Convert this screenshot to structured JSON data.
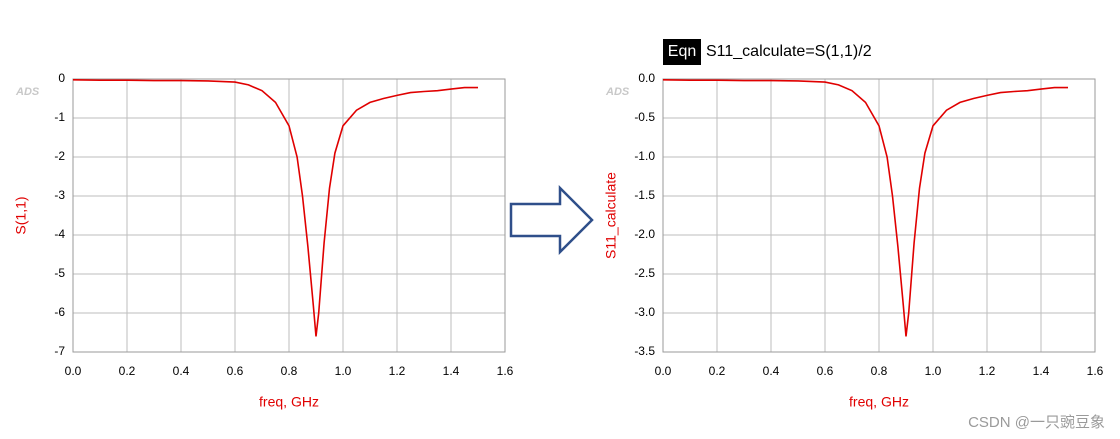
{
  "chart_data": [
    {
      "type": "line",
      "logo": "ADS",
      "x_label": "freq, GHz",
      "y_label": "S(1,1)",
      "color": "#e00000",
      "grid": true,
      "x": [
        0,
        0.1,
        0.2,
        0.3,
        0.4,
        0.5,
        0.6,
        0.65,
        0.7,
        0.75,
        0.8,
        0.83,
        0.85,
        0.87,
        0.89,
        0.9,
        0.91,
        0.93,
        0.95,
        0.97,
        1.0,
        1.05,
        1.1,
        1.15,
        1.2,
        1.25,
        1.3,
        1.35,
        1.4,
        1.45,
        1.5
      ],
      "values": [
        -0.02,
        -0.03,
        -0.03,
        -0.04,
        -0.04,
        -0.05,
        -0.08,
        -0.15,
        -0.3,
        -0.6,
        -1.2,
        -2.0,
        -3.0,
        -4.3,
        -5.8,
        -6.6,
        -6.0,
        -4.2,
        -2.8,
        -1.9,
        -1.2,
        -0.8,
        -0.6,
        -0.5,
        -0.42,
        -0.35,
        -0.32,
        -0.3,
        -0.26,
        -0.22,
        -0.22
      ],
      "xlim": [
        0,
        1.6
      ],
      "ylim": [
        -7,
        0
      ],
      "xticks": [
        {
          "value": 0,
          "label": "0.0"
        },
        0.2,
        0.4,
        0.6,
        0.8,
        {
          "value": 1,
          "label": "1.0"
        },
        1.2,
        1.4,
        1.6
      ],
      "yticks": [
        0,
        -1,
        -2,
        -3,
        -4,
        -5,
        -6,
        -7
      ]
    },
    {
      "type": "line",
      "logo": "ADS",
      "badge": "Eqn",
      "equation": "S11_calculate=S(1,1)/2",
      "x_label": "freq, GHz",
      "y_label": "S11_calculate",
      "color": "#e00000",
      "grid": true,
      "x": [
        0,
        0.1,
        0.2,
        0.3,
        0.4,
        0.5,
        0.6,
        0.65,
        0.7,
        0.75,
        0.8,
        0.83,
        0.85,
        0.87,
        0.89,
        0.9,
        0.91,
        0.93,
        0.95,
        0.97,
        1.0,
        1.05,
        1.1,
        1.15,
        1.2,
        1.25,
        1.3,
        1.35,
        1.4,
        1.45,
        1.5
      ],
      "values": [
        -0.01,
        -0.015,
        -0.015,
        -0.02,
        -0.02,
        -0.025,
        -0.04,
        -0.075,
        -0.15,
        -0.3,
        -0.6,
        -1.0,
        -1.5,
        -2.15,
        -2.9,
        -3.3,
        -3.0,
        -2.1,
        -1.4,
        -0.95,
        -0.6,
        -0.4,
        -0.3,
        -0.25,
        -0.21,
        -0.175,
        -0.16,
        -0.15,
        -0.13,
        -0.11,
        -0.11
      ],
      "xlim": [
        0,
        1.6
      ],
      "ylim": [
        -3.5,
        0
      ],
      "xticks": [
        {
          "value": 0,
          "label": "0.0"
        },
        0.2,
        0.4,
        0.6,
        0.8,
        {
          "value": 1,
          "label": "1.0"
        },
        1.2,
        1.4,
        1.6
      ],
      "yticks": [
        {
          "value": 0,
          "label": "0.0"
        },
        -0.5,
        {
          "value": -1,
          "label": "-1.0"
        },
        -1.5,
        {
          "value": -2,
          "label": "-2.0"
        },
        -2.5,
        {
          "value": -3,
          "label": "-3.0"
        },
        -3.5
      ]
    }
  ],
  "watermark": "CSDN @一只豌豆象"
}
